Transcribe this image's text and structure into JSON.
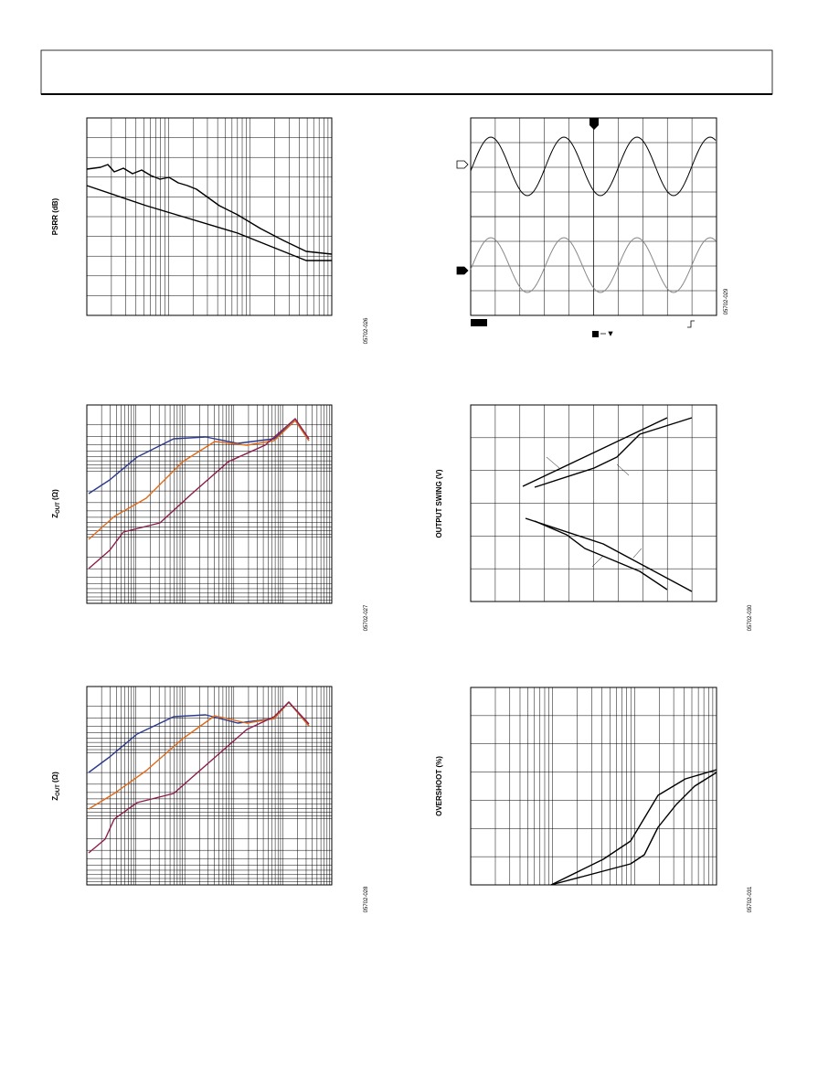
{
  "figures": [
    {
      "ylabel": "PSRR (dB)",
      "code": "05702-026"
    },
    {
      "ylabel_main": "Z",
      "ylabel_sub": "OUT",
      "ylabel_unit": " (Ω)",
      "code": "05702-027"
    },
    {
      "ylabel_main": "Z",
      "ylabel_sub": "OUT",
      "ylabel_unit": " (Ω)",
      "code": "05702-028"
    },
    {
      "code": "05702-029"
    },
    {
      "ylabel": "OUTPUT SWING (V)",
      "code": "05702-030"
    },
    {
      "ylabel": "OVERSHOOT (%)",
      "code": "05702-031"
    }
  ]
}
